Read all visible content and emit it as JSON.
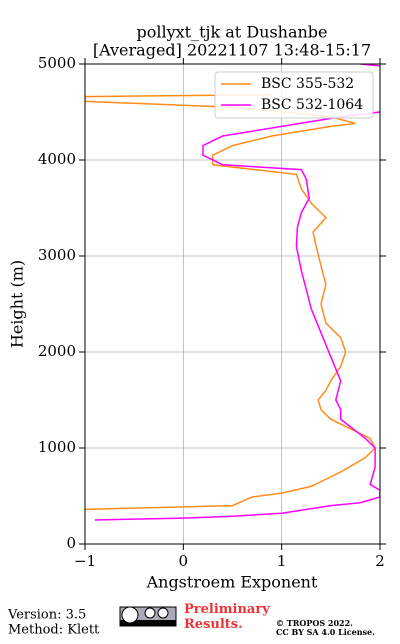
{
  "chart_data": {
    "type": "line",
    "title": "pollyxt_tjk at Dushanbe",
    "subtitle": "[Averaged] 20221107 13:48-15:17",
    "x_label": "Angstroem Exponent",
    "y_label": "Height (m)",
    "xlim": [
      -1,
      2
    ],
    "xticks": [
      {
        "value": -1,
        "label": "−1"
      },
      0,
      1,
      2
    ],
    "ylim": [
      0,
      5000
    ],
    "yticks": [
      0,
      1000,
      2000,
      3000,
      4000,
      5000
    ],
    "grid": true,
    "legend": "upper right",
    "series": [
      {
        "name": "BSC 355-532",
        "color": "#ff8c1a",
        "x": [
          -1.0,
          0.5,
          0.7,
          1.0,
          1.3,
          1.6,
          1.85,
          1.95,
          1.9,
          1.7,
          1.5,
          1.4,
          1.37,
          1.45,
          1.5,
          1.6,
          1.65,
          1.6,
          1.45,
          1.4,
          1.45,
          1.4,
          1.35,
          1.32,
          1.45,
          1.3,
          1.2,
          1.15,
          0.3,
          0.3,
          0.5,
          0.9,
          1.5,
          1.75,
          1.5,
          0.5,
          -1.0,
          -1.0,
          0.9
        ],
        "y": [
          360,
          400,
          490,
          530,
          600,
          750,
          900,
          1000,
          1100,
          1200,
          1300,
          1400,
          1500,
          1600,
          1700,
          1850,
          2000,
          2150,
          2300,
          2500,
          2700,
          2900,
          3100,
          3250,
          3400,
          3550,
          3700,
          3850,
          3950,
          4050,
          4150,
          4250,
          4350,
          4380,
          4450,
          4550,
          4610,
          4660,
          4680
        ]
      },
      {
        "name": "BSC 532-1064",
        "color": "#ff00ff",
        "x": [
          -0.9,
          0.0,
          0.5,
          1.0,
          1.5,
          1.8,
          2.0,
          2.0,
          1.9,
          1.95,
          1.95,
          1.85,
          1.6,
          1.6,
          1.55,
          1.6,
          1.5,
          1.4,
          1.3,
          1.25,
          1.2,
          1.15,
          1.16,
          1.2,
          1.28,
          1.25,
          1.2,
          0.4,
          0.2,
          0.2,
          0.4,
          1.0,
          1.6,
          2.0,
          null,
          2.0,
          1.8
        ],
        "y": [
          250,
          270,
          290,
          320,
          400,
          430,
          490,
          560,
          620,
          800,
          1000,
          1100,
          1300,
          1400,
          1500,
          1700,
          1950,
          2200,
          2450,
          2650,
          2850,
          3100,
          3300,
          3450,
          3600,
          3800,
          3900,
          3950,
          4050,
          4150,
          4250,
          4350,
          4450,
          4500,
          null,
          4980,
          5000
        ]
      }
    ]
  },
  "footer": {
    "version": "Version: 3.5",
    "method": "Method: Klett",
    "preliminary": "Preliminary Results.",
    "copyright": "© TROPOS 2022.",
    "license": "CC BY SA 4.0 License."
  }
}
